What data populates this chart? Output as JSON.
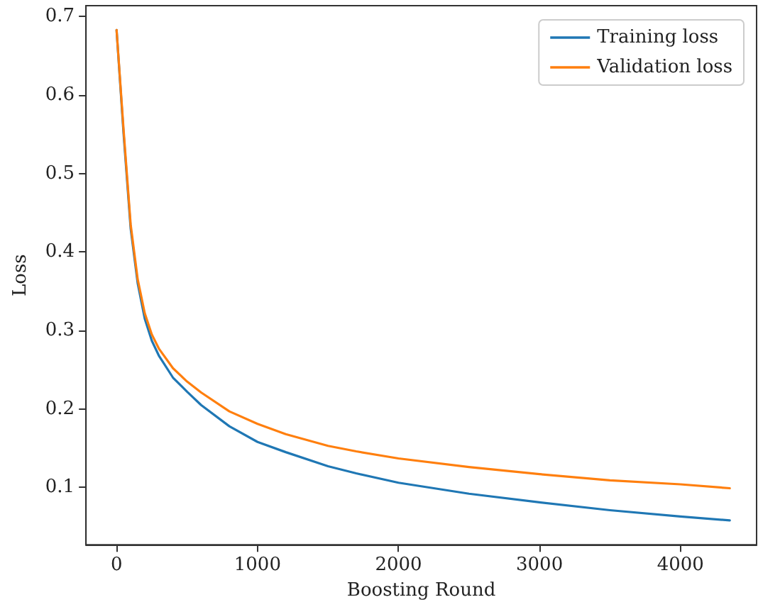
{
  "chart_data": {
    "type": "line",
    "xlabel": "Boosting Round",
    "ylabel": "Loss",
    "xlim": [
      -217,
      4540
    ],
    "xticks": [
      0,
      1000,
      2000,
      3000,
      4000
    ],
    "ylim": [
      0.027,
      0.714
    ],
    "yticks": [
      0.1,
      0.2,
      0.3,
      0.4,
      0.5,
      0.6,
      0.7
    ],
    "grid": false,
    "legend": "top right",
    "marker": "none",
    "line_style": "solid",
    "x": [
      0,
      50,
      100,
      150,
      200,
      250,
      300,
      400,
      500,
      600,
      800,
      1000,
      1200,
      1500,
      1700,
      2000,
      2500,
      3000,
      3500,
      4000,
      4350
    ],
    "series": [
      {
        "name": "Training loss",
        "color": "#1f77b4",
        "values": [
          0.683,
          0.55,
          0.43,
          0.36,
          0.315,
          0.287,
          0.268,
          0.24,
          0.222,
          0.205,
          0.178,
          0.158,
          0.145,
          0.127,
          0.118,
          0.106,
          0.092,
          0.081,
          0.071,
          0.063,
          0.058
        ]
      },
      {
        "name": "Validation loss",
        "color": "#ff7f0e",
        "values": [
          0.683,
          0.555,
          0.435,
          0.365,
          0.322,
          0.295,
          0.277,
          0.252,
          0.235,
          0.221,
          0.197,
          0.181,
          0.168,
          0.153,
          0.146,
          0.137,
          0.126,
          0.117,
          0.109,
          0.104,
          0.099
        ]
      }
    ]
  }
}
